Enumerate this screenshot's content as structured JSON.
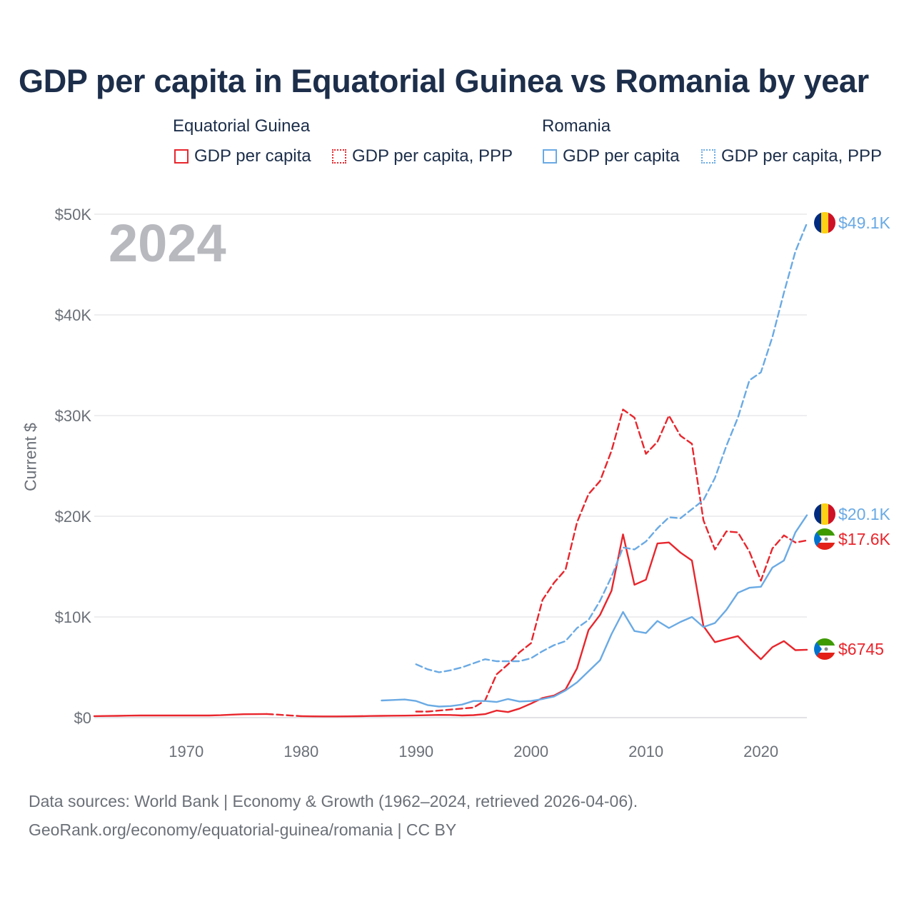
{
  "title": "GDP per capita in Equatorial Guinea vs Romania by year",
  "legend": {
    "groups": [
      {
        "name": "Equatorial Guinea",
        "color": "#e8262d",
        "items": [
          {
            "label": "GDP per capita",
            "style": "solid"
          },
          {
            "label": "GDP per capita, PPP",
            "style": "dotted"
          }
        ]
      },
      {
        "name": "Romania",
        "color": "#6aaae4",
        "items": [
          {
            "label": "GDP per capita",
            "style": "solid"
          },
          {
            "label": "GDP per capita, PPP",
            "style": "dotted"
          }
        ]
      }
    ]
  },
  "year_watermark": "2024",
  "source_lines": [
    "Data sources: World Bank | Economy & Growth (1962–2024, retrieved 2026-04-06).",
    "GeoRank.org/economy/equatorial-guinea/romania | CC BY"
  ],
  "chart_data": {
    "type": "line",
    "title": "GDP per capita in Equatorial Guinea vs Romania by year",
    "xlabel": "",
    "ylabel": "Current $",
    "xlim": [
      1962,
      2024
    ],
    "ylim": [
      0,
      50000
    ],
    "x_ticks": [
      1970,
      1980,
      1990,
      2000,
      2010,
      2020
    ],
    "x_tick_labels": [
      "1970",
      "1980",
      "1990",
      "2000",
      "2010",
      "2020"
    ],
    "y_ticks": [
      0,
      10000,
      20000,
      30000,
      40000,
      50000
    ],
    "y_tick_labels": [
      "$0",
      "$10K",
      "$20K",
      "$30K",
      "$40K",
      "$50K"
    ],
    "grid": true,
    "series": [
      {
        "name": "Equatorial Guinea — GDP per capita",
        "color": "#e8262d",
        "dash": "solid",
        "end_label": "$6745",
        "x": [
          1962,
          1963,
          1964,
          1965,
          1966,
          1967,
          1968,
          1969,
          1970,
          1971,
          1972,
          1973,
          1974,
          1975,
          1976,
          1977,
          1978,
          1979,
          1980,
          1981,
          1982,
          1983,
          1984,
          1985,
          1986,
          1987,
          1988,
          1989,
          1990,
          1991,
          1992,
          1993,
          1994,
          1995,
          1996,
          1997,
          1998,
          1999,
          2000,
          2001,
          2002,
          2003,
          2004,
          2005,
          2006,
          2007,
          2008,
          2009,
          2010,
          2011,
          2012,
          2013,
          2014,
          2015,
          2016,
          2017,
          2018,
          2019,
          2020,
          2021,
          2022,
          2023,
          2024
        ],
        "values": [
          150,
          160,
          180,
          200,
          210,
          215,
          210,
          210,
          210,
          210,
          215,
          240,
          300,
          340,
          350,
          360,
          300,
          220,
          150,
          130,
          120,
          120,
          130,
          140,
          160,
          180,
          190,
          200,
          220,
          240,
          270,
          260,
          210,
          250,
          350,
          700,
          550,
          900,
          1400,
          1950,
          2200,
          2800,
          4900,
          8700,
          10200,
          12600,
          18200,
          13200,
          13700,
          17300,
          17400,
          16400,
          15600,
          9100,
          7500,
          7800,
          8100,
          6900,
          5800,
          7000,
          7600,
          6700,
          6745
        ],
        "gap_after_year": 1977,
        "gap_until_year": 1980
      },
      {
        "name": "Equatorial Guinea — GDP per capita, PPP",
        "color": "#e8262d",
        "dash": "dashed",
        "end_label": "$17.6K",
        "x": [
          1990,
          1991,
          1992,
          1993,
          1994,
          1995,
          1996,
          1997,
          1998,
          1999,
          2000,
          2001,
          2002,
          2003,
          2004,
          2005,
          2006,
          2007,
          2008,
          2009,
          2010,
          2011,
          2012,
          2013,
          2014,
          2015,
          2016,
          2017,
          2018,
          2019,
          2020,
          2021,
          2022,
          2023,
          2024
        ],
        "values": [
          600,
          600,
          700,
          800,
          900,
          1000,
          1700,
          4300,
          5300,
          6500,
          7400,
          11700,
          13400,
          14700,
          19400,
          22200,
          23500,
          26500,
          30600,
          29800,
          26200,
          27400,
          30000,
          28000,
          27200,
          19600,
          16700,
          18500,
          18400,
          16500,
          13600,
          16800,
          18100,
          17400,
          17600
        ]
      },
      {
        "name": "Romania — GDP per capita",
        "color": "#6aaae4",
        "dash": "solid",
        "end_label": "$20.1K",
        "x": [
          1987,
          1988,
          1989,
          1990,
          1991,
          1992,
          1993,
          1994,
          1995,
          1996,
          1997,
          1998,
          1999,
          2000,
          2001,
          2002,
          2003,
          2004,
          2005,
          2006,
          2007,
          2008,
          2009,
          2010,
          2011,
          2012,
          2013,
          2014,
          2015,
          2016,
          2017,
          2018,
          2019,
          2020,
          2021,
          2022,
          2023,
          2024
        ],
        "values": [
          1700,
          1750,
          1800,
          1650,
          1250,
          1100,
          1150,
          1300,
          1650,
          1650,
          1550,
          1850,
          1600,
          1650,
          1850,
          2100,
          2700,
          3500,
          4600,
          5700,
          8300,
          10500,
          8600,
          8400,
          9600,
          8900,
          9500,
          10000,
          9000,
          9400,
          10700,
          12400,
          12900,
          13000,
          14900,
          15600,
          18400,
          20100
        ]
      },
      {
        "name": "Romania — GDP per capita, PPP",
        "color": "#6aaae4",
        "dash": "dashed",
        "end_label": "$49.1K",
        "x": [
          1990,
          1991,
          1992,
          1993,
          1994,
          1995,
          1996,
          1997,
          1998,
          1999,
          2000,
          2001,
          2002,
          2003,
          2004,
          2005,
          2006,
          2007,
          2008,
          2009,
          2010,
          2011,
          2012,
          2013,
          2014,
          2015,
          2016,
          2017,
          2018,
          2019,
          2020,
          2021,
          2022,
          2023,
          2024
        ],
        "values": [
          5300,
          4800,
          4500,
          4700,
          5000,
          5400,
          5800,
          5600,
          5600,
          5600,
          5900,
          6600,
          7200,
          7600,
          8900,
          9700,
          11600,
          14000,
          16900,
          16700,
          17500,
          18800,
          19900,
          19800,
          20700,
          21600,
          23800,
          27000,
          29800,
          33500,
          34300,
          37800,
          42200,
          46300,
          49100
        ]
      }
    ]
  },
  "colors": {
    "title": "#1c2e4a",
    "axis_text": "#6b7078",
    "grid": "#e9e9ec",
    "watermark": "#b8b9bf"
  }
}
